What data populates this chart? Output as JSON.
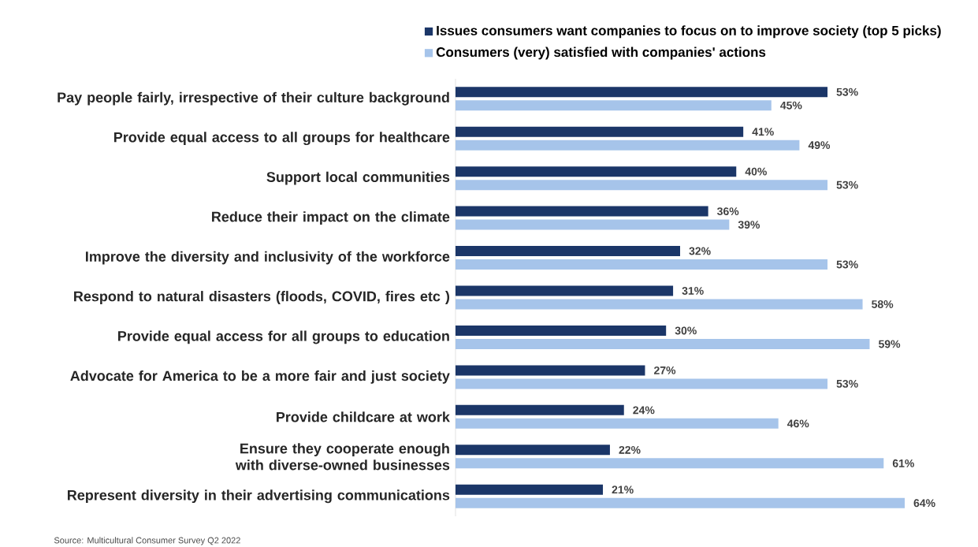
{
  "chart_data": {
    "type": "bar",
    "orientation": "horizontal",
    "categories": [
      "Pay people fairly, irrespective of their culture background",
      "Provide equal access to all groups for healthcare",
      "Support local communities",
      "Reduce their impact on the climate",
      "Improve the diversity and inclusivity of the workforce",
      "Respond to natural disasters (floods, COVID, fires etc )",
      "Provide equal access for all groups to education",
      "Advocate for America to be a more fair and just society",
      "Provide childcare at work",
      "Ensure they cooperate enough with diverse-owned businesses",
      "Represent diversity in their advertising communications"
    ],
    "series": [
      {
        "name": "Issues consumers want companies to focus on to improve society (top 5 picks)",
        "color": "#1b3668",
        "values": [
          53,
          41,
          40,
          36,
          32,
          31,
          30,
          27,
          24,
          22,
          21
        ],
        "value_labels": [
          "53%",
          "41%",
          "40%",
          "36%",
          "32%",
          "31%",
          "30%",
          "27%",
          "24%",
          "22%",
          "21%"
        ]
      },
      {
        "name": "Consumers (very) satisfied with companies' actions",
        "color": "#a6c4ea",
        "values": [
          45,
          49,
          53,
          39,
          53,
          58,
          59,
          53,
          46,
          61,
          64
        ],
        "value_labels": [
          "45%",
          "49%",
          "53%",
          "39%",
          "53%",
          "58%",
          "59%",
          "53%",
          "46%",
          "61%",
          "64%"
        ]
      }
    ],
    "legend": "top right",
    "annotations": [
      "Source: Multicultural Consumer Survey Q2 2022"
    ]
  }
}
